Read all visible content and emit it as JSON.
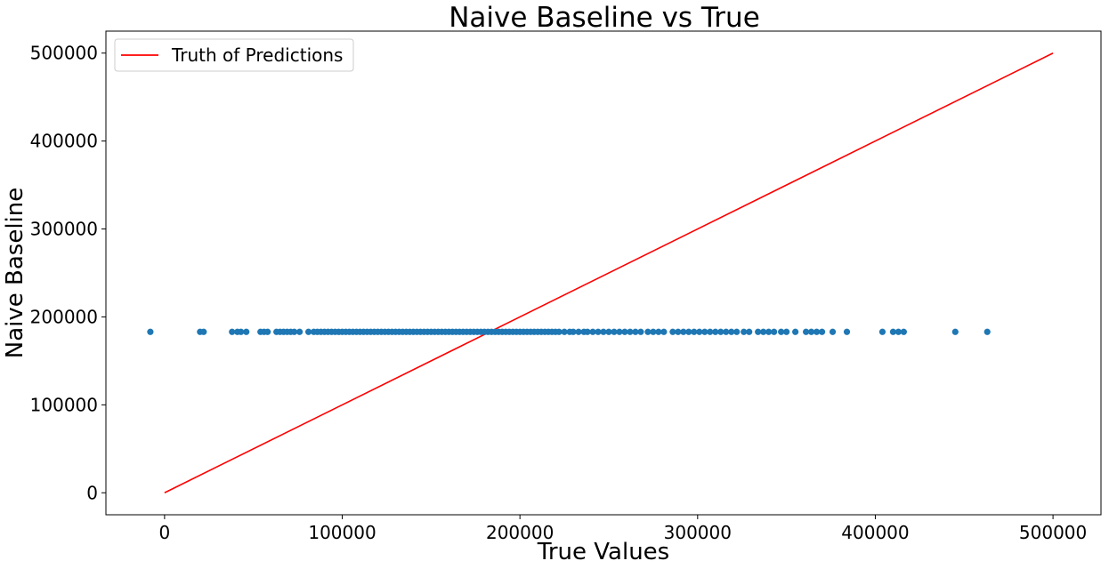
{
  "chart_data": {
    "type": "scatter",
    "title": "Naive Baseline vs True",
    "xlabel": "True Values",
    "ylabel": "Naive Baseline",
    "xlim": [
      -33000,
      527000
    ],
    "ylim": [
      -25000,
      525000
    ],
    "xticks": [
      0,
      100000,
      200000,
      300000,
      400000,
      500000
    ],
    "yticks": [
      0,
      100000,
      200000,
      300000,
      400000,
      500000
    ],
    "grid": false,
    "legend_position": "upper-left",
    "series": [
      {
        "name": "Truth of Predictions",
        "type": "line",
        "color": "#ff0000",
        "x": [
          0,
          500000
        ],
        "y": [
          0,
          500000
        ]
      },
      {
        "name": "",
        "type": "scatter",
        "color": "#1f77b4",
        "y_constant": 183000,
        "x": [
          -8000,
          20000,
          22000,
          38000,
          41000,
          43000,
          46000,
          54000,
          56000,
          58000,
          63000,
          65000,
          67000,
          69000,
          71000,
          73000,
          76000,
          81000,
          84000,
          86000,
          88000,
          90000,
          92000,
          94000,
          96000,
          98000,
          100000,
          102000,
          104000,
          106000,
          108000,
          110000,
          112000,
          114000,
          116000,
          118000,
          120000,
          122000,
          124000,
          126000,
          128000,
          130000,
          132000,
          134000,
          136000,
          138000,
          140000,
          142000,
          144000,
          146000,
          148000,
          150000,
          152000,
          154000,
          156000,
          158000,
          160000,
          162000,
          164000,
          166000,
          168000,
          170000,
          172000,
          174000,
          176000,
          178000,
          180000,
          182000,
          184000,
          186000,
          188000,
          190000,
          192000,
          194000,
          196000,
          198000,
          200000,
          202000,
          204000,
          206000,
          208000,
          210000,
          212000,
          214000,
          216000,
          218000,
          220000,
          222000,
          225000,
          228000,
          230000,
          233000,
          236000,
          238000,
          241000,
          244000,
          247000,
          250000,
          253000,
          256000,
          259000,
          262000,
          265000,
          268000,
          272000,
          275000,
          278000,
          281000,
          286000,
          289000,
          292000,
          295000,
          298000,
          301000,
          304000,
          307000,
          310000,
          313000,
          316000,
          319000,
          322000,
          326000,
          329000,
          334000,
          337000,
          340000,
          343000,
          347000,
          350000,
          355000,
          361000,
          364000,
          367000,
          370000,
          376000,
          384000,
          404000,
          410000,
          413000,
          416000,
          445000,
          463000
        ]
      }
    ]
  }
}
